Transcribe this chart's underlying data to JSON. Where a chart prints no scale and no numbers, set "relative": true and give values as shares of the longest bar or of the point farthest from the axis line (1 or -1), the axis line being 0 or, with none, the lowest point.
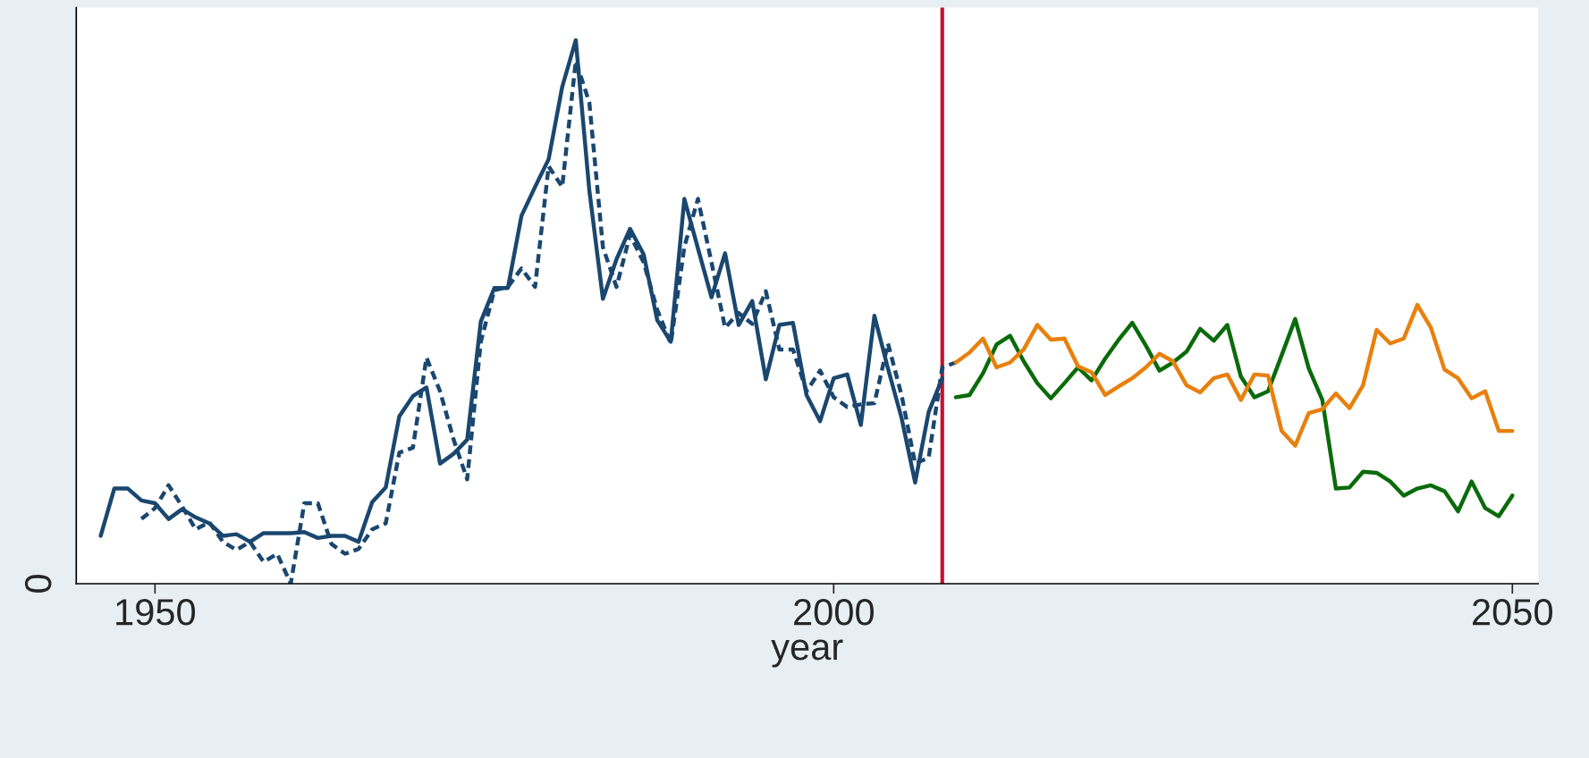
{
  "chart_data": {
    "type": "line",
    "relative": true,
    "xlabel": "year",
    "xlim": [
      1944.2,
      2051.9
    ],
    "xticks": [
      1950,
      2000,
      2050
    ],
    "grid": false,
    "legend": false,
    "annotations": [
      "0"
    ],
    "ref_lines": [
      {
        "axis": "x",
        "value": 2008,
        "color": "#c8102e"
      }
    ],
    "series": [
      {
        "color": "#1a476f",
        "line_style": "solid",
        "x": [
          1946,
          1947,
          1948,
          1949,
          1950,
          1951,
          1952,
          1953,
          1954,
          1955,
          1956,
          1957,
          1958,
          1959,
          1960,
          1961,
          1962,
          1963,
          1964,
          1965,
          1966,
          1967,
          1968,
          1969,
          1970,
          1971,
          1972,
          1973,
          1974,
          1975,
          1976,
          1977,
          1978,
          1979,
          1980,
          1981,
          1982,
          1983,
          1984,
          1985,
          1986,
          1987,
          1988,
          1989,
          1990,
          1991,
          1992,
          1993,
          1994,
          1995,
          1996,
          1997,
          1998,
          1999,
          2000,
          2001,
          2002,
          2003,
          2004,
          2005,
          2006,
          2007,
          2008
        ],
        "values": [
          0.088,
          0.175,
          0.175,
          0.153,
          0.148,
          0.119,
          0.137,
          0.122,
          0.111,
          0.088,
          0.091,
          0.077,
          0.093,
          0.093,
          0.093,
          0.095,
          0.084,
          0.088,
          0.088,
          0.077,
          0.15,
          0.177,
          0.308,
          0.345,
          0.361,
          0.221,
          0.239,
          0.265,
          0.482,
          0.544,
          0.544,
          0.677,
          0.73,
          0.781,
          0.914,
          1.0,
          0.723,
          0.524,
          0.597,
          0.653,
          0.606,
          0.485,
          0.445,
          0.708,
          0.617,
          0.527,
          0.608,
          0.476,
          0.52,
          0.376,
          0.476,
          0.48,
          0.347,
          0.299,
          0.378,
          0.385,
          0.292,
          0.493,
          0.396,
          0.305,
          0.186,
          0.316,
          0.378
        ]
      },
      {
        "color": "#1a476f",
        "line_style": "dashed",
        "x": [
          1949,
          1950,
          1951,
          1952,
          1953,
          1954,
          1955,
          1956,
          1957,
          1958,
          1959,
          1960,
          1961,
          1962,
          1963,
          1964,
          1965,
          1966,
          1967,
          1968,
          1969,
          1970,
          1971,
          1972,
          1973,
          1974,
          1975,
          1976,
          1977,
          1978,
          1979,
          1980,
          1981,
          1982,
          1983,
          1984,
          1985,
          1986,
          1987,
          1988,
          1989,
          1990,
          1991,
          1992,
          1993,
          1994,
          1995,
          1996,
          1997,
          1998,
          1999,
          2000,
          2001,
          2002,
          2003,
          2004,
          2005,
          2006,
          2007,
          2008,
          2009
        ],
        "values": [
          0.119,
          0.139,
          0.181,
          0.142,
          0.1,
          0.113,
          0.077,
          0.062,
          0.077,
          0.04,
          0.055,
          0.0,
          0.148,
          0.148,
          0.073,
          0.055,
          0.064,
          0.1,
          0.111,
          0.241,
          0.25,
          0.416,
          0.354,
          0.265,
          0.192,
          0.445,
          0.54,
          0.546,
          0.58,
          0.546,
          0.768,
          0.73,
          0.962,
          0.885,
          0.619,
          0.546,
          0.642,
          0.591,
          0.504,
          0.442,
          0.62,
          0.708,
          0.591,
          0.471,
          0.498,
          0.478,
          0.538,
          0.431,
          0.431,
          0.354,
          0.392,
          0.343,
          0.325,
          0.33,
          0.332,
          0.442,
          0.347,
          0.221,
          0.232,
          0.398,
          0.407
        ]
      },
      {
        "color": "#0a6b0a",
        "line_style": "solid",
        "x": [
          2009,
          2010,
          2011,
          2012,
          2013,
          2014,
          2015,
          2016,
          2017,
          2018,
          2019,
          2020,
          2021,
          2022,
          2023,
          2024,
          2025,
          2026,
          2027,
          2028,
          2029,
          2030,
          2031,
          2032,
          2033,
          2034,
          2035,
          2036,
          2037,
          2038,
          2039,
          2040,
          2041,
          2042,
          2043,
          2044,
          2045,
          2046,
          2047,
          2048,
          2049,
          2050
        ],
        "values": [
          0.343,
          0.347,
          0.387,
          0.44,
          0.456,
          0.409,
          0.369,
          0.341,
          0.369,
          0.398,
          0.374,
          0.414,
          0.449,
          0.48,
          0.438,
          0.392,
          0.407,
          0.427,
          0.469,
          0.447,
          0.476,
          0.381,
          0.343,
          0.354,
          0.42,
          0.487,
          0.396,
          0.338,
          0.175,
          0.177,
          0.206,
          0.204,
          0.188,
          0.162,
          0.175,
          0.181,
          0.17,
          0.133,
          0.188,
          0.139,
          0.124,
          0.162
        ]
      },
      {
        "color": "#e8800d",
        "line_style": "solid",
        "x": [
          2009,
          2010,
          2011,
          2012,
          2013,
          2014,
          2015,
          2016,
          2017,
          2018,
          2019,
          2020,
          2021,
          2022,
          2023,
          2024,
          2025,
          2026,
          2027,
          2028,
          2029,
          2030,
          2031,
          2032,
          2033,
          2034,
          2035,
          2036,
          2037,
          2038,
          2039,
          2040,
          2041,
          2042,
          2043,
          2044,
          2045,
          2046,
          2047,
          2048,
          2049,
          2050
        ],
        "values": [
          0.407,
          0.425,
          0.451,
          0.398,
          0.407,
          0.431,
          0.476,
          0.449,
          0.451,
          0.4,
          0.389,
          0.347,
          0.363,
          0.378,
          0.398,
          0.423,
          0.409,
          0.365,
          0.352,
          0.378,
          0.385,
          0.338,
          0.385,
          0.383,
          0.281,
          0.254,
          0.314,
          0.321,
          0.35,
          0.323,
          0.365,
          0.467,
          0.442,
          0.451,
          0.513,
          0.471,
          0.394,
          0.378,
          0.341,
          0.354,
          0.281,
          0.281
        ]
      }
    ]
  }
}
